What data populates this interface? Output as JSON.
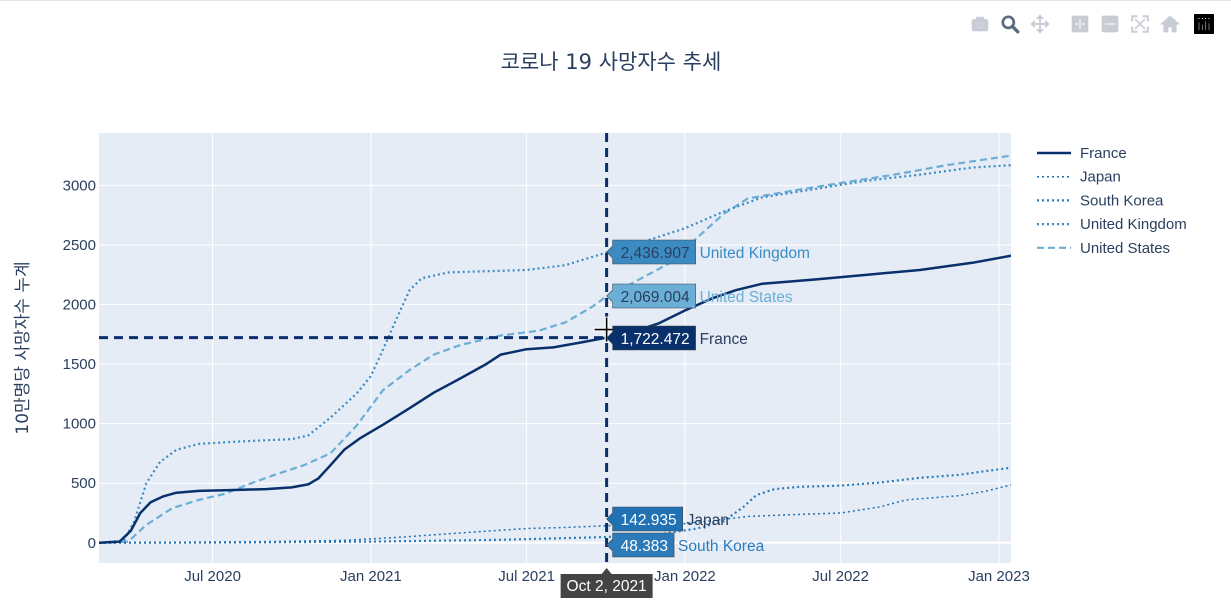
{
  "modebar": {
    "buttons": [
      {
        "icon": "camera-icon",
        "label": "Download plot as png"
      },
      {
        "icon": "zoom-icon",
        "label": "Zoom"
      },
      {
        "icon": "pan-icon",
        "label": "Pan"
      },
      {
        "icon": "zoom-in-icon",
        "label": "Zoom in"
      },
      {
        "icon": "zoom-out-icon",
        "label": "Zoom out"
      },
      {
        "icon": "autoscale-icon",
        "label": "Autoscale"
      },
      {
        "icon": "home-icon",
        "label": "Reset axes"
      },
      {
        "icon": "plotly-logo-icon",
        "label": "Produced with Plotly"
      }
    ],
    "colors": {
      "inactive": "#c8cdd5",
      "active": "#5a6b80",
      "logo": "#000000"
    }
  },
  "colors": {
    "plot_bg": "#e5ecf6",
    "grid": "#ffffff",
    "text": "#2a3f5f",
    "hover_date_bg": "#444444"
  },
  "chart_data": {
    "type": "line",
    "title": "코로나 19 사망자수 추세",
    "xlabel": "",
    "ylabel": "10만명당 사망자수 누계",
    "xlim": [
      "2020-02-20",
      "2023-01-15"
    ],
    "ylim": [
      -170,
      3440
    ],
    "x_ticks": [
      {
        "date": "2020-07-01",
        "label": "Jul 2020"
      },
      {
        "date": "2021-01-01",
        "label": "Jan 2021"
      },
      {
        "date": "2021-07-01",
        "label": "Jul 2021"
      },
      {
        "date": "2022-01-01",
        "label": "Jan 2022"
      },
      {
        "date": "2022-07-01",
        "label": "Jul 2022"
      },
      {
        "date": "2023-01-01",
        "label": "Jan 2023"
      }
    ],
    "y_ticks": [
      0,
      500,
      1000,
      1500,
      2000,
      2500,
      3000
    ],
    "grid": true,
    "legend_position": "right",
    "series": [
      {
        "name": "France",
        "color": "#08306b",
        "dash": "solid",
        "width": 2.5,
        "points": [
          [
            "2020-02-20",
            0
          ],
          [
            "2020-03-15",
            10
          ],
          [
            "2020-03-28",
            100
          ],
          [
            "2020-04-08",
            250
          ],
          [
            "2020-04-20",
            340
          ],
          [
            "2020-05-05",
            390
          ],
          [
            "2020-05-20",
            420
          ],
          [
            "2020-06-15",
            435
          ],
          [
            "2020-07-15",
            440
          ],
          [
            "2020-09-01",
            450
          ],
          [
            "2020-10-01",
            465
          ],
          [
            "2020-10-20",
            490
          ],
          [
            "2020-11-01",
            540
          ],
          [
            "2020-11-15",
            650
          ],
          [
            "2020-12-01",
            780
          ],
          [
            "2020-12-20",
            880
          ],
          [
            "2021-01-15",
            990
          ],
          [
            "2021-02-15",
            1130
          ],
          [
            "2021-03-15",
            1260
          ],
          [
            "2021-04-15",
            1380
          ],
          [
            "2021-05-15",
            1500
          ],
          [
            "2021-06-01",
            1580
          ],
          [
            "2021-07-01",
            1625
          ],
          [
            "2021-08-01",
            1640
          ],
          [
            "2021-09-01",
            1680
          ],
          [
            "2021-10-02",
            1722.472
          ],
          [
            "2021-11-01",
            1770
          ],
          [
            "2021-12-01",
            1840
          ],
          [
            "2022-01-01",
            1950
          ],
          [
            "2022-02-01",
            2050
          ],
          [
            "2022-03-01",
            2120
          ],
          [
            "2022-04-01",
            2175
          ],
          [
            "2022-06-01",
            2210
          ],
          [
            "2022-08-01",
            2250
          ],
          [
            "2022-10-01",
            2290
          ],
          [
            "2022-12-01",
            2350
          ],
          [
            "2023-01-15",
            2410
          ]
        ]
      },
      {
        "name": "Japan",
        "color": "#2171b5",
        "dash": "dot",
        "width": 1.5,
        "points": [
          [
            "2020-02-20",
            0
          ],
          [
            "2020-06-01",
            5
          ],
          [
            "2020-09-01",
            10
          ],
          [
            "2020-12-01",
            20
          ],
          [
            "2021-02-01",
            45
          ],
          [
            "2021-05-01",
            90
          ],
          [
            "2021-07-01",
            120
          ],
          [
            "2021-08-15",
            128
          ],
          [
            "2021-10-02",
            142.935
          ],
          [
            "2021-12-15",
            148
          ],
          [
            "2022-02-01",
            185
          ],
          [
            "2022-03-15",
            220
          ],
          [
            "2022-05-01",
            235
          ],
          [
            "2022-07-01",
            250
          ],
          [
            "2022-08-15",
            300
          ],
          [
            "2022-09-15",
            360
          ],
          [
            "2022-11-15",
            395
          ],
          [
            "2022-12-15",
            430
          ],
          [
            "2023-01-15",
            485
          ]
        ]
      },
      {
        "name": "South Korea",
        "color": "#2b7bba",
        "dash": "dot",
        "width": 2.2,
        "points": [
          [
            "2020-02-20",
            0
          ],
          [
            "2020-08-01",
            3
          ],
          [
            "2021-01-01",
            10
          ],
          [
            "2021-06-01",
            25
          ],
          [
            "2021-10-02",
            48.383
          ],
          [
            "2021-12-01",
            70
          ],
          [
            "2022-01-15",
            120
          ],
          [
            "2022-02-15",
            180
          ],
          [
            "2022-03-10",
            300
          ],
          [
            "2022-03-25",
            400
          ],
          [
            "2022-04-15",
            450
          ],
          [
            "2022-05-15",
            470
          ],
          [
            "2022-07-01",
            480
          ],
          [
            "2022-08-15",
            505
          ],
          [
            "2022-10-01",
            545
          ],
          [
            "2022-11-15",
            570
          ],
          [
            "2022-12-15",
            600
          ],
          [
            "2023-01-15",
            630
          ]
        ]
      },
      {
        "name": "United Kingdom",
        "color": "#3b8bc2",
        "dash": "dot",
        "width": 2.2,
        "points": [
          [
            "2020-02-20",
            0
          ],
          [
            "2020-03-20",
            20
          ],
          [
            "2020-04-01",
            180
          ],
          [
            "2020-04-15",
            500
          ],
          [
            "2020-05-01",
            680
          ],
          [
            "2020-05-20",
            780
          ],
          [
            "2020-06-15",
            830
          ],
          [
            "2020-08-01",
            850
          ],
          [
            "2020-10-01",
            870
          ],
          [
            "2020-10-20",
            900
          ],
          [
            "2020-11-15",
            1050
          ],
          [
            "2020-12-15",
            1250
          ],
          [
            "2021-01-01",
            1400
          ],
          [
            "2021-01-15",
            1620
          ],
          [
            "2021-02-01",
            1900
          ],
          [
            "2021-02-15",
            2120
          ],
          [
            "2021-03-01",
            2220
          ],
          [
            "2021-04-01",
            2270
          ],
          [
            "2021-07-01",
            2290
          ],
          [
            "2021-08-15",
            2330
          ],
          [
            "2021-10-02",
            2436.907
          ],
          [
            "2021-11-15",
            2530
          ],
          [
            "2022-01-01",
            2640
          ],
          [
            "2022-02-15",
            2780
          ],
          [
            "2022-04-01",
            2900
          ],
          [
            "2022-06-01",
            2970
          ],
          [
            "2022-08-01",
            3040
          ],
          [
            "2022-10-01",
            3090
          ],
          [
            "2022-12-01",
            3150
          ],
          [
            "2023-01-15",
            3170
          ]
        ]
      },
      {
        "name": "United States",
        "color": "#6baed6",
        "dash": "dash",
        "width": 2.2,
        "points": [
          [
            "2020-02-20",
            0
          ],
          [
            "2020-03-25",
            10
          ],
          [
            "2020-04-15",
            150
          ],
          [
            "2020-05-15",
            290
          ],
          [
            "2020-06-15",
            360
          ],
          [
            "2020-07-15",
            410
          ],
          [
            "2020-08-15",
            500
          ],
          [
            "2020-09-15",
            580
          ],
          [
            "2020-10-15",
            650
          ],
          [
            "2020-11-15",
            750
          ],
          [
            "2020-12-15",
            980
          ],
          [
            "2021-01-15",
            1280
          ],
          [
            "2021-02-15",
            1450
          ],
          [
            "2021-03-15",
            1580
          ],
          [
            "2021-04-15",
            1660
          ],
          [
            "2021-06-01",
            1740
          ],
          [
            "2021-07-15",
            1780
          ],
          [
            "2021-08-15",
            1850
          ],
          [
            "2021-09-15",
            1980
          ],
          [
            "2021-10-02",
            2069.004
          ],
          [
            "2021-11-01",
            2180
          ],
          [
            "2021-12-15",
            2350
          ],
          [
            "2022-01-15",
            2560
          ],
          [
            "2022-02-15",
            2760
          ],
          [
            "2022-03-15",
            2890
          ],
          [
            "2022-05-01",
            2950
          ],
          [
            "2022-07-01",
            3020
          ],
          [
            "2022-09-01",
            3090
          ],
          [
            "2022-11-01",
            3170
          ],
          [
            "2023-01-15",
            3250
          ]
        ]
      }
    ],
    "hover": {
      "date": "2021-10-02",
      "date_label": "Oct 2, 2021",
      "spike_y": 1722.472,
      "labels": [
        {
          "series": "United Kingdom",
          "value_text": "2,436.907",
          "box_color": "#3b8bc2",
          "name_color": "#3b8bc2",
          "value_color": "#2a3f5f"
        },
        {
          "series": "United States",
          "value_text": "2,069.004",
          "box_color": "#6baed6",
          "name_color": "#6baed6",
          "value_color": "#2a3f5f"
        },
        {
          "series": "France",
          "value_text": "1,722.472",
          "box_color": "#08306b",
          "name_color": "#2a3f5f",
          "value_color": "#ffffff"
        },
        {
          "series": "Japan",
          "value_text": "142.935",
          "box_color": "#2171b5",
          "name_color": "#2a3f5f",
          "value_color": "#ffffff"
        },
        {
          "series": "South Korea",
          "value_text": "48.383",
          "box_color": "#2b7bba",
          "name_color": "#2b7bba",
          "value_color": "#ffffff"
        }
      ]
    }
  }
}
